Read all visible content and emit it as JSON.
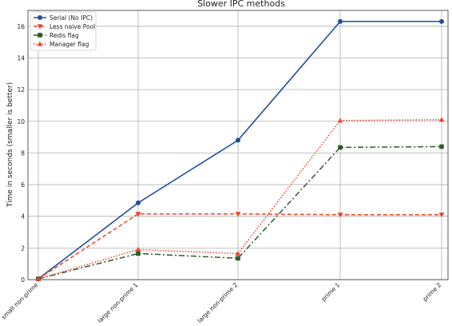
{
  "chart_data": {
    "type": "line",
    "title": "Slower IPC methods",
    "xlabel": "",
    "ylabel": "Time in seconds (smaller is better)",
    "categories": [
      "small non-prime",
      "large non-prime 1",
      "large non-prime 2",
      "prime 1",
      "prime 2"
    ],
    "ylim": [
      0,
      17
    ],
    "yticks": [
      0,
      2,
      4,
      6,
      8,
      10,
      12,
      14,
      16
    ],
    "grid": true,
    "legend_position": "top-left",
    "series": [
      {
        "name": "Serial (No IPC)",
        "values": [
          0.05,
          4.85,
          8.8,
          16.3,
          16.3
        ],
        "color": "#1f4e9c",
        "line_style": "solid",
        "marker": "circle"
      },
      {
        "name": "Less naive Pool",
        "values": [
          0.05,
          4.15,
          4.15,
          4.1,
          4.1
        ],
        "color": "#e8462a",
        "line_style": "dashed",
        "marker": "triangle-down"
      },
      {
        "name": "Redis flag",
        "values": [
          0.05,
          1.65,
          1.35,
          8.35,
          8.4
        ],
        "color": "#2f5a2a",
        "line_style": "dashdot",
        "marker": "square"
      },
      {
        "name": "Manager flag",
        "values": [
          0.05,
          1.9,
          1.65,
          10.05,
          10.1
        ],
        "color": "#e8462a",
        "line_style": "dotted",
        "marker": "triangle-up"
      }
    ]
  }
}
